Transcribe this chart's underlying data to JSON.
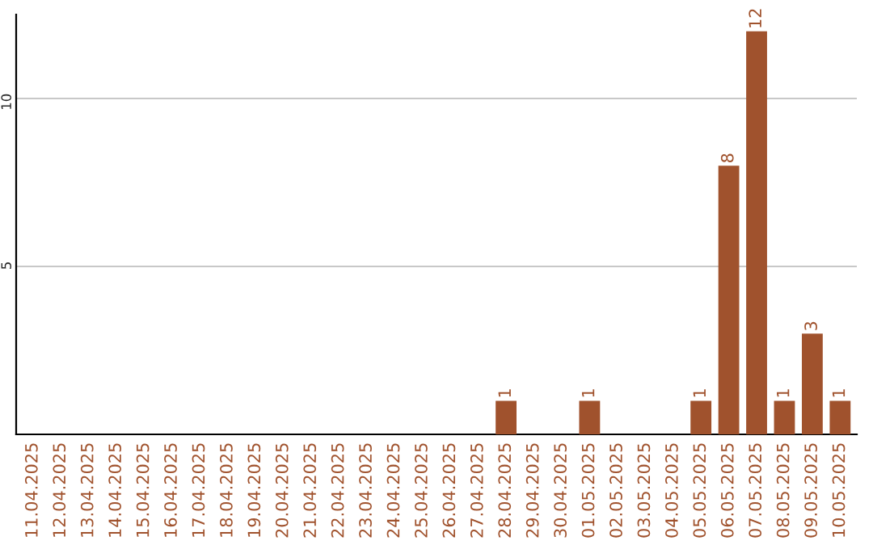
{
  "chart_data": {
    "type": "bar",
    "categories": [
      "11.04.2025",
      "12.04.2025",
      "13.04.2025",
      "14.04.2025",
      "15.04.2025",
      "16.04.2025",
      "17.04.2025",
      "18.04.2025",
      "19.04.2025",
      "20.04.2025",
      "21.04.2025",
      "22.04.2025",
      "23.04.2025",
      "24.04.2025",
      "25.04.2025",
      "26.04.2025",
      "27.04.2025",
      "28.04.2025",
      "29.04.2025",
      "30.04.2025",
      "01.05.2025",
      "02.05.2025",
      "03.05.2025",
      "04.05.2025",
      "05.05.2025",
      "06.05.2025",
      "07.05.2025",
      "08.05.2025",
      "09.05.2025",
      "10.05.2025"
    ],
    "values": [
      0,
      0,
      0,
      0,
      0,
      0,
      0,
      0,
      0,
      0,
      0,
      0,
      0,
      0,
      0,
      0,
      0,
      1,
      0,
      0,
      1,
      0,
      0,
      0,
      1,
      8,
      12,
      1,
      3,
      1
    ],
    "value_labels": [
      null,
      null,
      null,
      null,
      null,
      null,
      null,
      null,
      null,
      null,
      null,
      null,
      null,
      null,
      null,
      null,
      null,
      "1",
      null,
      null,
      "1",
      null,
      null,
      null,
      "1",
      "8",
      "12",
      "1",
      "3",
      "1"
    ],
    "color": "#a0522d",
    "ylim": [
      0,
      12.5
    ],
    "yticks": [
      5,
      10
    ],
    "grid": "y"
  }
}
